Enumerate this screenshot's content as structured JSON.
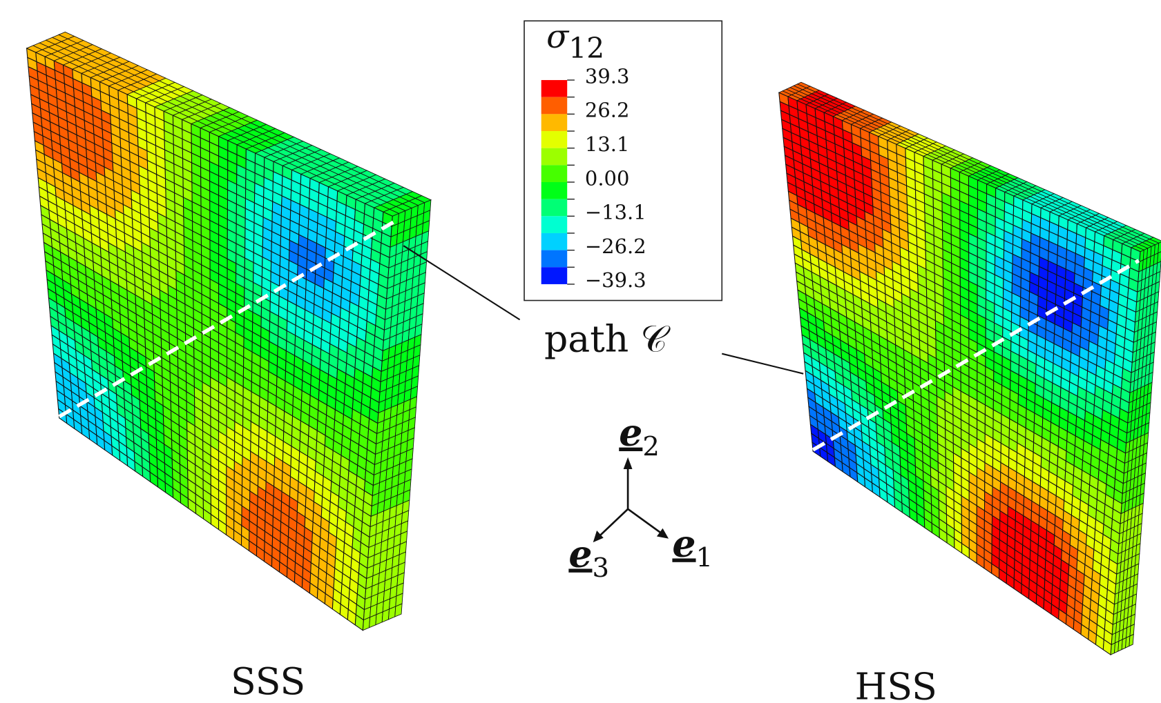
{
  "legend": {
    "title": {
      "symbol": "σ",
      "subscript": "12"
    },
    "labels": [
      "39.3",
      "26.2",
      "13.1",
      "0.00",
      "−13.1",
      "−26.2",
      "−39.3"
    ]
  },
  "path_label": "path 𝒞",
  "panels": [
    {
      "label": "SSS"
    },
    {
      "label": "HSS"
    }
  ],
  "axes": [
    {
      "symbol": "e",
      "subscript": "2"
    },
    {
      "symbol": "e",
      "subscript": "3"
    },
    {
      "symbol": "e",
      "subscript": "1"
    }
  ]
}
